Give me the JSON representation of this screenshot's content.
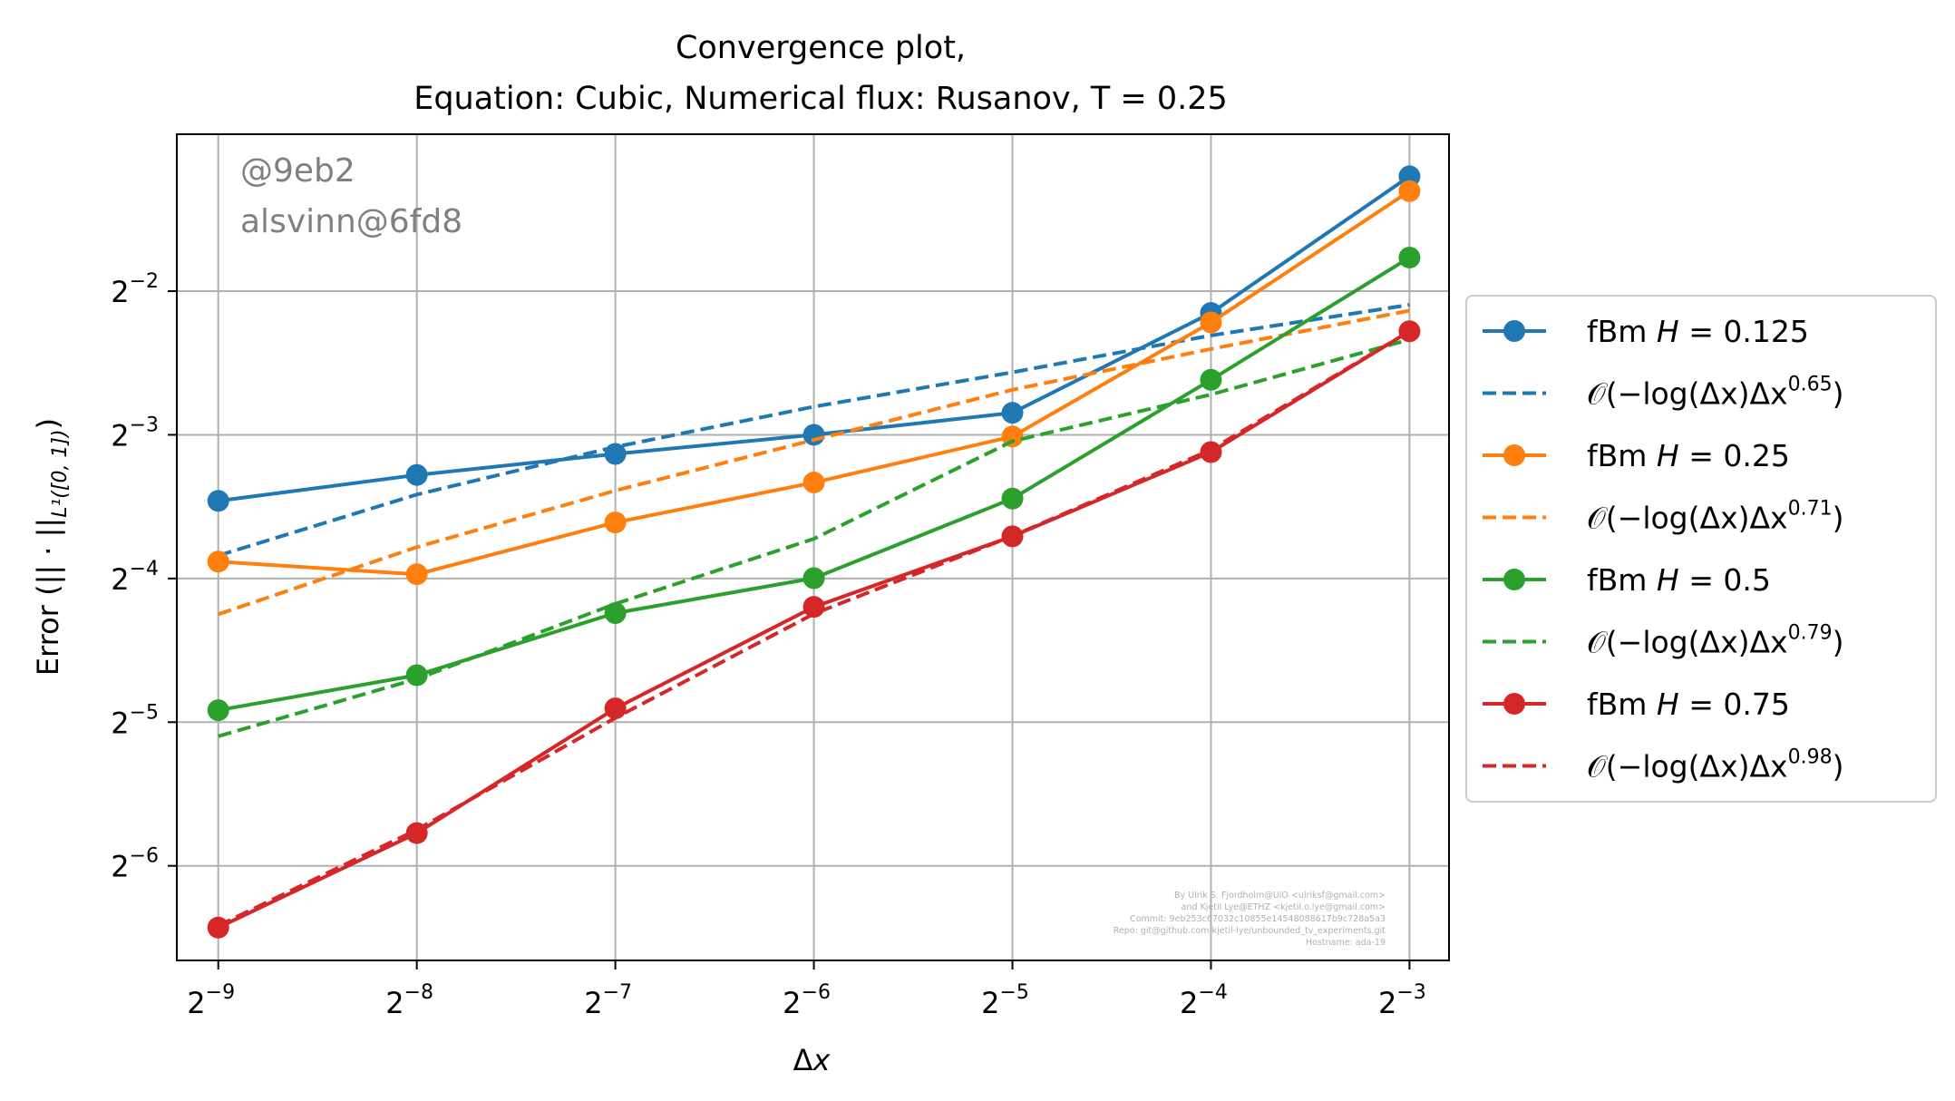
{
  "chart_data": {
    "type": "line",
    "title": "Convergence plot,",
    "subtitle": "Equation: Cubic, Numerical flux: Rusanov, T = 0.25",
    "xlabel": "Δx",
    "ylabel": "Error (|| · ||L¹([0, 1]))",
    "ylabel_parts": {
      "pre": "Error (|| · ||",
      "sub": "L¹([0, 1])",
      "post": ")"
    },
    "x_scale": "log2",
    "y_scale": "log2",
    "x_ticks": [
      {
        "base": "2",
        "exp": "−9",
        "value": 0.001953125
      },
      {
        "base": "2",
        "exp": "−8",
        "value": 0.00390625
      },
      {
        "base": "2",
        "exp": "−7",
        "value": 0.0078125
      },
      {
        "base": "2",
        "exp": "−6",
        "value": 0.015625
      },
      {
        "base": "2",
        "exp": "−5",
        "value": 0.03125
      },
      {
        "base": "2",
        "exp": "−4",
        "value": 0.0625
      },
      {
        "base": "2",
        "exp": "−3",
        "value": 0.125
      }
    ],
    "y_ticks": [
      {
        "base": "2",
        "exp": "−6",
        "value": 0.015625
      },
      {
        "base": "2",
        "exp": "−5",
        "value": 0.03125
      },
      {
        "base": "2",
        "exp": "−4",
        "value": 0.0625
      },
      {
        "base": "2",
        "exp": "−3",
        "value": 0.125
      },
      {
        "base": "2",
        "exp": "−2",
        "value": 0.25
      }
    ],
    "xlim": [
      0.00169,
      0.1435
    ],
    "ylim": [
      0.0099,
      0.533
    ],
    "grid": true,
    "legend_position": "right, outside plot",
    "x": [
      0.001953125,
      0.00390625,
      0.0078125,
      0.015625,
      0.03125,
      0.0625,
      0.125
    ],
    "series": [
      {
        "name": "fBm H = 0.125",
        "label_pre": "fBm ",
        "label_var": "H",
        "label_post": " = 0.125",
        "style": "solid-marker",
        "color": "#1f77b4",
        "values": [
          0.0909,
          0.103,
          0.114,
          0.125,
          0.139,
          0.225,
          0.435
        ]
      },
      {
        "name": "O(−log(Δx)Δx^0.65)",
        "label_pre": "𝒪(−log(Δx)Δx",
        "label_sup": "0.65",
        "label_post": ")",
        "style": "dashed",
        "color": "#1f77b4",
        "values": [
          0.0698,
          0.0937,
          0.1179,
          0.1432,
          0.169,
          0.2019,
          0.234
        ]
      },
      {
        "name": "fBm H = 0.25",
        "label_pre": "fBm ",
        "label_var": "H",
        "label_post": " = 0.25",
        "style": "solid-marker",
        "color": "#ff7f0e",
        "values": [
          0.0678,
          0.0638,
          0.0819,
          0.0993,
          0.124,
          0.215,
          0.405
        ]
      },
      {
        "name": "O(−log(Δx)Δx^0.71)",
        "label_pre": "𝒪(−log(Δx)Δx",
        "label_sup": "0.71",
        "label_post": ")",
        "style": "dashed",
        "color": "#ff7f0e",
        "values": [
          0.0526,
          0.0727,
          0.0955,
          0.122,
          0.1553,
          0.1891,
          0.2276
        ]
      },
      {
        "name": "fBm H = 0.5",
        "label_pre": "fBm ",
        "label_var": "H",
        "label_post": " = 0.5",
        "style": "solid-marker",
        "color": "#2ca02c",
        "values": [
          0.0331,
          0.0392,
          0.0529,
          0.0626,
          0.0919,
          0.163,
          0.294
        ]
      },
      {
        "name": "O(−log(Δx)Δx^0.79)",
        "label_pre": "𝒪(−log(Δx)Δx",
        "label_sup": "0.79",
        "label_post": ")",
        "style": "dashed",
        "color": "#2ca02c",
        "values": [
          0.0292,
          0.0385,
          0.0553,
          0.0757,
          0.1212,
          0.1518,
          0.1979
        ]
      },
      {
        "name": "fBm H = 0.75",
        "label_pre": "fBm ",
        "label_var": "H",
        "label_post": " = 0.75",
        "style": "solid-marker",
        "color": "#d62728",
        "values": [
          0.0116,
          0.0183,
          0.0334,
          0.0545,
          0.0766,
          0.115,
          0.206
        ]
      },
      {
        "name": "O(−log(Δx)Δx^0.98)",
        "label_pre": "𝒪(−log(Δx)Δx",
        "label_sup": "0.98",
        "label_post": ")",
        "style": "dashed",
        "color": "#d62728",
        "values": [
          0.0117,
          0.0186,
          0.0319,
          0.0527,
          0.0767,
          0.1163,
          0.206
        ]
      }
    ],
    "annotations": {
      "watermark": [
        "@9eb2",
        "alsvinn@6fd8"
      ],
      "credits": [
        "By Ulrik S. Fjordholm@UiO <ulriksf@gmail.com>",
        "and Kjetil Lye@ETHZ <kjetil.o.lye@gmail.com>",
        "Commit: 9eb253c67032c10855e14548088617b9c728a5a3",
        "Repo: git@github.com:kjetil-lye/unbounded_tv_experiments.git",
        "Hostname: ada-19"
      ]
    }
  }
}
